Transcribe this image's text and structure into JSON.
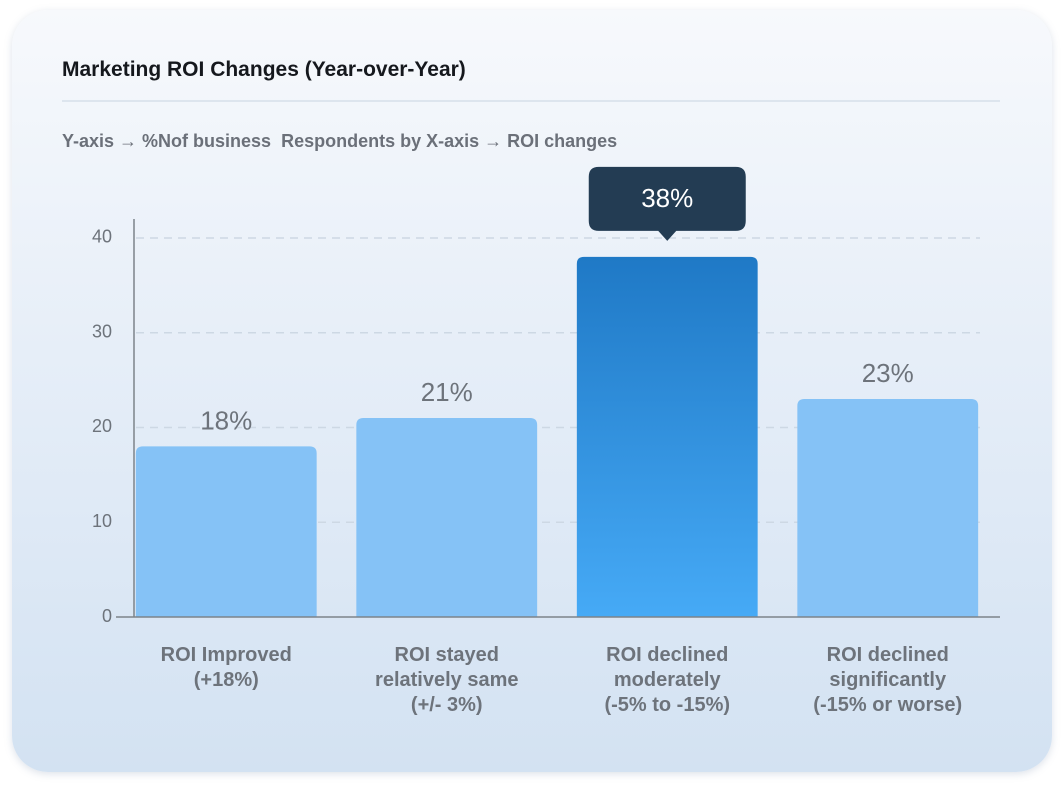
{
  "chart_data": {
    "type": "bar",
    "title": "Marketing ROI Changes (Year-over-Year)",
    "subtitle": "Y-axis → %Nof business  Respondents by X-axis → ROI changes",
    "categories": [
      "ROI Improved\n(+18%)",
      "ROI stayed\nrelatively same\n(+/- 3%)",
      "ROI declined\nmoderately\n(-5% to -15%)",
      "ROI declined\nsignificantly\n(-15% or worse)"
    ],
    "values": [
      18,
      21,
      38,
      23
    ],
    "value_labels": [
      "18%",
      "21%",
      "38%",
      "23%"
    ],
    "colors": [
      "#85c2f6",
      "#85c2f6",
      "#2e8ce0",
      "#85c2f6"
    ],
    "highlight_index": 2,
    "ylim": [
      0,
      42
    ],
    "yticks": [
      0,
      10,
      20,
      30,
      40
    ],
    "grid": true
  }
}
